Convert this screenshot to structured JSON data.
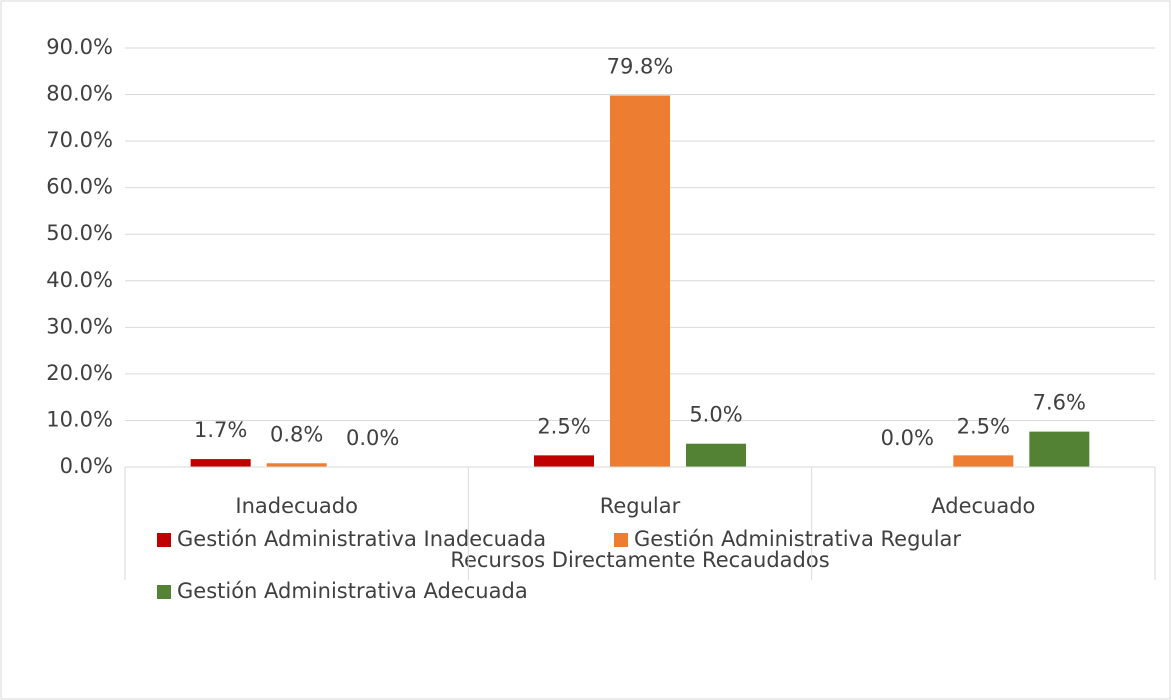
{
  "chart_data": {
    "type": "bar",
    "categories": [
      "Inadecuado",
      "Regular",
      "Adecuado"
    ],
    "x_label": "Recursos Directamente Recaudados",
    "series": [
      {
        "name": "Gestión Administrativa Inadecuada",
        "color": "#c00000",
        "values": [
          1.7,
          2.5,
          0.0
        ],
        "value_labels": [
          "1.7%",
          "2.5%",
          "0.0%"
        ]
      },
      {
        "name": "Gestión Administrativa Regular",
        "color": "#ed7d31",
        "values": [
          0.8,
          79.8,
          2.5
        ],
        "value_labels": [
          "0.8%",
          "79.8%",
          "2.5%"
        ]
      },
      {
        "name": "Gestión Administrativa Adecuada",
        "color": "#548235",
        "values": [
          0.0,
          5.0,
          7.6
        ],
        "value_labels": [
          "0.0%",
          "5.0%",
          "7.6%"
        ]
      }
    ],
    "ylim": [
      0,
      90
    ],
    "yticks": [
      {
        "value": 0,
        "label": "0.0%"
      },
      {
        "value": 10,
        "label": "10.0%"
      },
      {
        "value": 20,
        "label": "20.0%"
      },
      {
        "value": 30,
        "label": "30.0%"
      },
      {
        "value": 40,
        "label": "40.0%"
      },
      {
        "value": 50,
        "label": "50.0%"
      },
      {
        "value": 60,
        "label": "60.0%"
      },
      {
        "value": 70,
        "label": "70.0%"
      },
      {
        "value": 80,
        "label": "80.0%"
      },
      {
        "value": 90,
        "label": "90.0%"
      }
    ],
    "grid": true,
    "legend": "bottom"
  }
}
